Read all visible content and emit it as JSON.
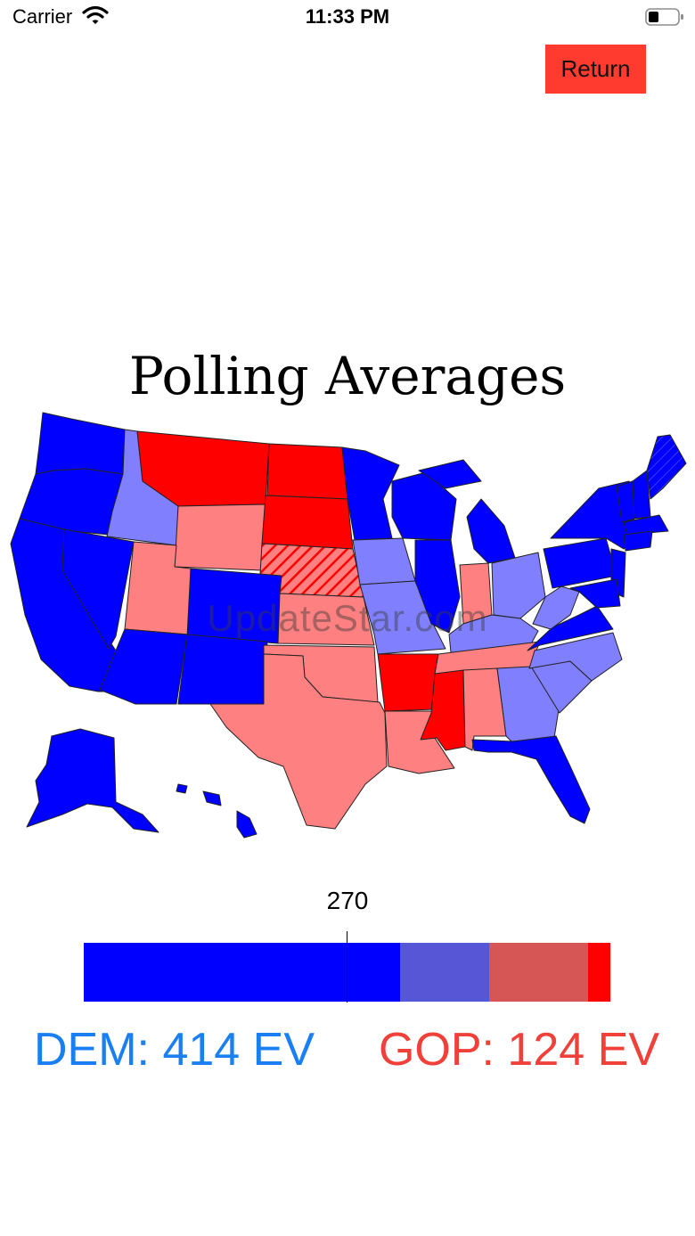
{
  "status_bar": {
    "carrier": "Carrier",
    "time": "11:33 PM"
  },
  "toolbar": {
    "return_label": "Return"
  },
  "title": "Polling Averages",
  "watermark": "UpdateStar.com",
  "colors": {
    "safe_dem": "#0000ff",
    "lean_dem": "#8080ff",
    "safe_gop": "#ff0000",
    "lean_gop": "#ff8080",
    "bar_tilt_dem": "#5656d6",
    "bar_tilt_gop": "#d65656"
  },
  "ev_bar": {
    "threshold_label": "270",
    "total": 538,
    "segments": [
      {
        "key": "safe-dem",
        "value": 323,
        "color": "#0000ff"
      },
      {
        "key": "lean-dem",
        "value": 91,
        "color": "#5656d6"
      },
      {
        "key": "lean-gop",
        "value": 101,
        "color": "#d65656"
      },
      {
        "key": "safe-gop",
        "value": 23,
        "color": "#ff0000"
      }
    ]
  },
  "totals": {
    "dem": "DEM: 414 EV",
    "gop": "GOP: 124 EV"
  }
}
